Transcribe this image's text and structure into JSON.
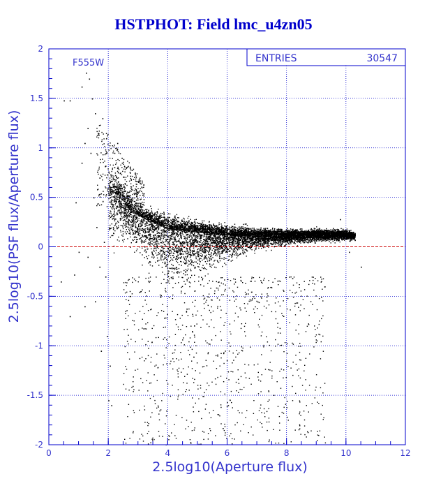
{
  "title": "HSTPHOT: Field lmc_u4zn05",
  "chart_data": {
    "type": "scatter",
    "title": "HSTPHOT: Field lmc_u4zn05",
    "xlabel": "2.5log10(Aperture flux)",
    "ylabel": "2.5log10(PSF flux/Aperture flux)",
    "filter_label": "F555W",
    "stats": {
      "label": "ENTRIES",
      "value": "30547"
    },
    "xlim": [
      0,
      12
    ],
    "ylim": [
      -2,
      2
    ],
    "x_ticks": [
      "0",
      "2",
      "4",
      "6",
      "8",
      "10",
      "12"
    ],
    "y_ticks": [
      "-2",
      "-1.5",
      "-1",
      "-0.5",
      "0",
      "0.5",
      "1",
      "1.5",
      "2"
    ],
    "grid": true,
    "reference_line": {
      "y": 0,
      "color": "#cc0000",
      "style": "dashed"
    },
    "colors": {
      "axis": "#0000cc",
      "points": "#000000",
      "grid": "#0000cc"
    },
    "series": [
      {
        "values_description_note": "",
        "points": [
          [
            0.5,
            1.48
          ],
          [
            0.7,
            1.48
          ],
          [
            1.1,
            1.62
          ],
          [
            1.25,
            1.76
          ],
          [
            1.35,
            1.7
          ],
          [
            1.45,
            1.5
          ],
          [
            1.3,
            1.2
          ],
          [
            1.2,
            1.05
          ],
          [
            1.55,
            1.35
          ],
          [
            1.8,
            1.3
          ],
          [
            1.9,
            0.82
          ],
          [
            1.7,
            0.7
          ],
          [
            1.4,
            0.95
          ],
          [
            1.1,
            0.85
          ],
          [
            0.9,
            0.45
          ],
          [
            1.5,
            0.5
          ],
          [
            1.6,
            0.2
          ],
          [
            1.85,
            0.05
          ],
          [
            1.0,
            -0.05
          ],
          [
            1.3,
            -0.1
          ],
          [
            1.7,
            -0.2
          ],
          [
            1.9,
            -0.3
          ],
          [
            1.55,
            -0.55
          ],
          [
            1.2,
            -0.6
          ],
          [
            0.7,
            -0.7
          ],
          [
            2.0,
            -1.55
          ],
          [
            2.1,
            -1.6
          ],
          [
            0.4,
            -0.35
          ],
          [
            0.85,
            -0.28
          ],
          [
            1.95,
            -0.9
          ],
          [
            2.05,
            -1.2
          ],
          [
            1.75,
            -1.05
          ],
          [
            10.5,
            -0.2
          ],
          [
            10.1,
            -0.05
          ],
          [
            9.8,
            0.28
          ],
          [
            2.3,
            1.05
          ],
          [
            2.2,
            0.95
          ],
          [
            2.45,
            0.9
          ],
          [
            2.15,
            0.7
          ]
        ]
      }
    ],
    "dense_band": {
      "upper_edge": [
        [
          2.0,
          0.9
        ],
        [
          2.4,
          0.75
        ],
        [
          2.8,
          0.55
        ],
        [
          3.2,
          0.45
        ],
        [
          4.0,
          0.38
        ],
        [
          5.0,
          0.3
        ],
        [
          6.0,
          0.25
        ],
        [
          7.0,
          0.22
        ],
        [
          8.0,
          0.2
        ],
        [
          9.0,
          0.2
        ],
        [
          10.0,
          0.2
        ],
        [
          10.3,
          0.15
        ]
      ],
      "center": [
        [
          2.2,
          0.55
        ],
        [
          2.8,
          0.35
        ],
        [
          3.5,
          0.25
        ],
        [
          4.0,
          0.18
        ],
        [
          5.0,
          0.15
        ],
        [
          6.0,
          0.12
        ],
        [
          7.0,
          0.12
        ],
        [
          8.0,
          0.12
        ],
        [
          9.0,
          0.13
        ],
        [
          10.0,
          0.13
        ],
        [
          10.3,
          0.12
        ]
      ],
      "lower_edge": [
        [
          2.8,
          -0.1
        ],
        [
          3.5,
          -0.4
        ],
        [
          4.0,
          -0.55
        ],
        [
          4.5,
          -0.5
        ],
        [
          5.0,
          -0.4
        ],
        [
          6.0,
          -0.2
        ],
        [
          7.0,
          -0.05
        ],
        [
          8.0,
          0.0
        ],
        [
          9.0,
          0.03
        ],
        [
          10.0,
          0.05
        ]
      ]
    }
  }
}
